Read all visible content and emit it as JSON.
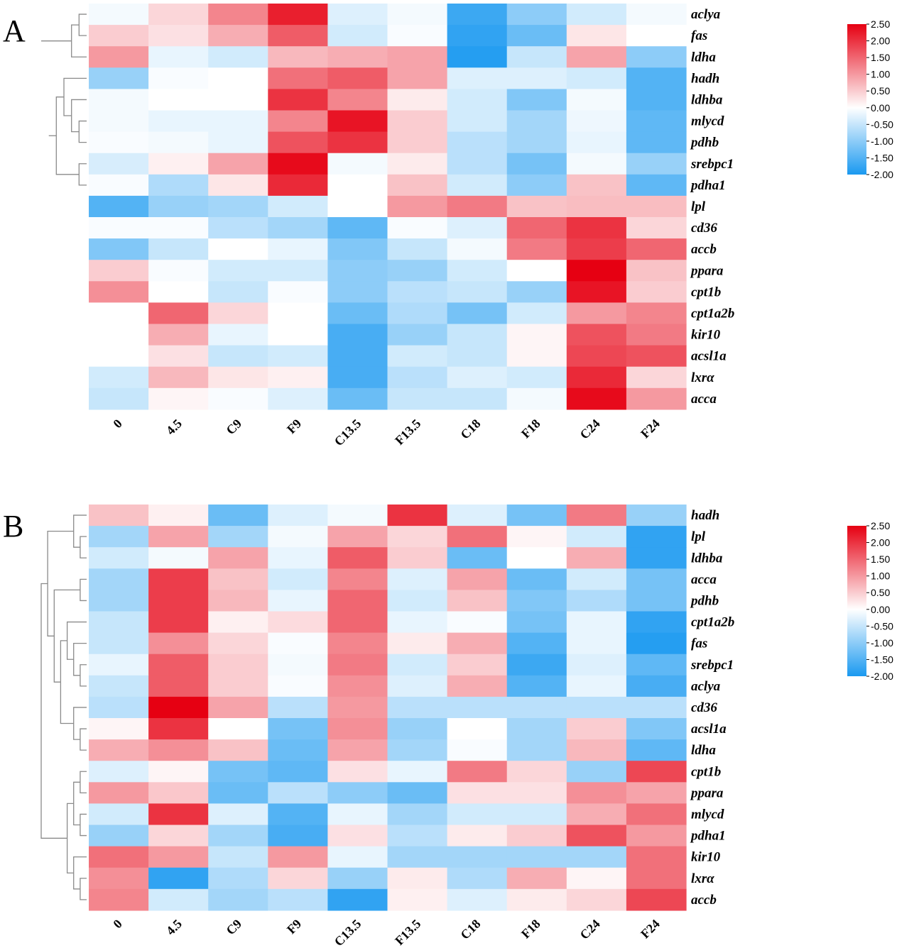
{
  "chart_data": [
    {
      "type": "heatmap",
      "panel_label": "A",
      "columns": [
        "0",
        "4.5",
        "C9",
        "F9",
        "C13.5",
        "F13.5",
        "C18",
        "F18",
        "C24",
        "F24"
      ],
      "rows": [
        "aclya",
        "fas",
        "ldha",
        "hadh",
        "ldhba",
        "mlycd",
        "pdhb",
        "srebpc1",
        "pdha1",
        "lpl",
        "cd36",
        "accb",
        "ppara",
        "cpt1b",
        "cpt1a2b",
        "kir10",
        "acsl1a",
        "lxrα",
        "acca"
      ],
      "values": [
        [
          -0.1,
          0.4,
          1.2,
          2.2,
          -0.3,
          -0.1,
          -1.7,
          -1.0,
          -0.4,
          -0.1
        ],
        [
          0.5,
          0.3,
          0.8,
          1.6,
          -0.4,
          -0.05,
          -1.8,
          -1.3,
          0.25,
          0.0
        ],
        [
          1.0,
          -0.2,
          -0.4,
          0.7,
          0.8,
          0.9,
          -1.9,
          -0.5,
          0.9,
          -1.0
        ],
        [
          -0.9,
          -0.05,
          0.0,
          1.4,
          1.6,
          0.9,
          -0.3,
          -0.3,
          -0.4,
          -1.5
        ],
        [
          -0.1,
          0.0,
          0.0,
          2.0,
          1.2,
          0.2,
          -0.4,
          -1.1,
          -0.1,
          -1.5
        ],
        [
          -0.1,
          -0.2,
          -0.2,
          1.2,
          2.3,
          0.5,
          -0.4,
          -0.8,
          -0.15,
          -1.4
        ],
        [
          -0.05,
          -0.1,
          -0.2,
          1.7,
          2.0,
          0.5,
          -0.6,
          -0.8,
          -0.2,
          -1.4
        ],
        [
          -0.35,
          0.15,
          0.9,
          2.4,
          -0.1,
          0.2,
          -0.6,
          -1.2,
          -0.1,
          -0.9
        ],
        [
          -0.05,
          -0.7,
          0.25,
          2.1,
          0.0,
          0.6,
          -0.4,
          -1.0,
          0.6,
          -1.4
        ],
        [
          -1.5,
          -0.9,
          -0.8,
          -0.4,
          0.0,
          1.0,
          1.3,
          0.6,
          0.65,
          0.65
        ],
        [
          -0.05,
          -0.05,
          -0.6,
          -0.8,
          -1.4,
          -0.05,
          -0.3,
          1.5,
          2.0,
          0.4
        ],
        [
          -1.1,
          -0.5,
          0.0,
          -0.2,
          -1.1,
          -0.5,
          -0.1,
          1.3,
          1.9,
          1.5
        ],
        [
          0.5,
          -0.05,
          -0.4,
          -0.4,
          -1.0,
          -0.9,
          -0.4,
          0.0,
          2.5,
          0.6
        ],
        [
          1.1,
          0.0,
          -0.5,
          -0.05,
          -1.0,
          -0.6,
          -0.5,
          -0.9,
          2.3,
          0.5
        ],
        [
          0.0,
          1.5,
          0.4,
          0.0,
          -1.3,
          -0.7,
          -1.2,
          -0.4,
          1.0,
          1.2
        ],
        [
          0.0,
          0.8,
          -0.2,
          0.0,
          -1.6,
          -0.9,
          -0.5,
          0.1,
          1.7,
          1.3
        ],
        [
          0.0,
          0.3,
          -0.5,
          -0.4,
          -1.6,
          -0.4,
          -0.5,
          0.1,
          1.8,
          1.7
        ],
        [
          -0.4,
          0.7,
          0.25,
          0.15,
          -1.6,
          -0.6,
          -0.3,
          -0.4,
          2.1,
          0.4
        ],
        [
          -0.5,
          0.1,
          -0.05,
          -0.3,
          -1.3,
          -0.5,
          -0.5,
          -0.1,
          2.4,
          1.0
        ]
      ],
      "colorbar": {
        "ticks": [
          "2.50",
          "2.00",
          "1.50",
          "1.00",
          "0.50",
          "0.00",
          "-0.50",
          "-1.00",
          "-1.50",
          "-2.00"
        ],
        "vmin": -2.0,
        "vmax": 2.5
      }
    },
    {
      "type": "heatmap",
      "panel_label": "B",
      "columns": [
        "0",
        "4.5",
        "C9",
        "F9",
        "C13.5",
        "F13.5",
        "C18",
        "F18",
        "C24",
        "F24"
      ],
      "rows": [
        "hadh",
        "lpl",
        "ldhba",
        "acca",
        "pdhb",
        "cpt1a2b",
        "fas",
        "srebpc1",
        "aclya",
        "cd36",
        "acsl1a",
        "ldha",
        "cpt1b",
        "ppara",
        "mlycd",
        "pdha1",
        "kir10",
        "lxrα",
        "accb"
      ],
      "values": [
        [
          0.6,
          0.15,
          -1.3,
          -0.3,
          -0.1,
          2.0,
          -0.3,
          -1.2,
          1.3,
          -0.9
        ],
        [
          -0.8,
          0.9,
          -0.8,
          -0.1,
          0.9,
          0.4,
          1.4,
          0.1,
          -0.4,
          -1.8
        ],
        [
          -0.4,
          -0.1,
          0.9,
          -0.2,
          1.6,
          0.5,
          -1.3,
          0.0,
          0.8,
          -1.8
        ],
        [
          -0.8,
          1.9,
          0.6,
          -0.4,
          1.2,
          -0.3,
          0.9,
          -1.3,
          -0.4,
          -1.2
        ],
        [
          -0.8,
          1.9,
          0.7,
          -0.2,
          1.5,
          -0.4,
          0.6,
          -1.1,
          -0.7,
          -1.2
        ],
        [
          -0.5,
          1.9,
          0.15,
          0.35,
          1.5,
          -0.2,
          -0.05,
          -1.2,
          -0.2,
          -1.8
        ],
        [
          -0.5,
          1.1,
          0.4,
          -0.05,
          1.2,
          0.2,
          0.8,
          -1.5,
          -0.2,
          -1.9
        ],
        [
          -0.2,
          1.6,
          0.5,
          -0.1,
          1.3,
          -0.4,
          0.5,
          -1.7,
          -0.3,
          -1.4
        ],
        [
          -0.5,
          1.6,
          0.5,
          -0.05,
          1.1,
          -0.3,
          0.8,
          -1.5,
          -0.2,
          -1.6
        ],
        [
          -0.6,
          2.5,
          0.9,
          -0.6,
          1.0,
          -0.6,
          -0.6,
          -0.6,
          -0.6,
          -0.6
        ],
        [
          0.1,
          2.0,
          0.0,
          -1.2,
          1.1,
          -0.9,
          0.0,
          -0.8,
          0.5,
          -1.1
        ],
        [
          0.8,
          1.1,
          0.6,
          -1.3,
          0.9,
          -0.8,
          -0.05,
          -0.8,
          0.7,
          -1.4
        ],
        [
          -0.3,
          0.1,
          -1.2,
          -1.4,
          0.3,
          -0.2,
          1.3,
          0.4,
          -0.9,
          1.8
        ],
        [
          1.0,
          0.55,
          -1.3,
          -0.6,
          -1.0,
          -1.3,
          0.3,
          0.3,
          1.1,
          0.9
        ],
        [
          -0.4,
          2.0,
          -0.3,
          -1.5,
          -0.2,
          -0.8,
          -0.4,
          -0.4,
          0.8,
          1.4
        ],
        [
          -0.9,
          0.4,
          -0.8,
          -1.6,
          0.3,
          -0.6,
          0.2,
          0.5,
          1.7,
          1.0
        ],
        [
          1.4,
          1.0,
          -0.5,
          1.0,
          -0.2,
          -0.8,
          -0.8,
          -0.8,
          -0.8,
          1.4
        ],
        [
          1.1,
          -1.8,
          -0.7,
          0.4,
          -0.9,
          0.2,
          -0.7,
          0.8,
          0.1,
          1.4
        ],
        [
          1.2,
          -0.4,
          -0.8,
          -0.6,
          -1.8,
          0.15,
          -0.3,
          0.2,
          0.4,
          1.8
        ]
      ],
      "colorbar": {
        "ticks": [
          "2.50",
          "2.00",
          "1.50",
          "1.00",
          "0.50",
          "0.00",
          "-0.50",
          "-1.00",
          "-1.50",
          "-2.00"
        ],
        "vmin": -2.0,
        "vmax": 2.5
      }
    }
  ]
}
